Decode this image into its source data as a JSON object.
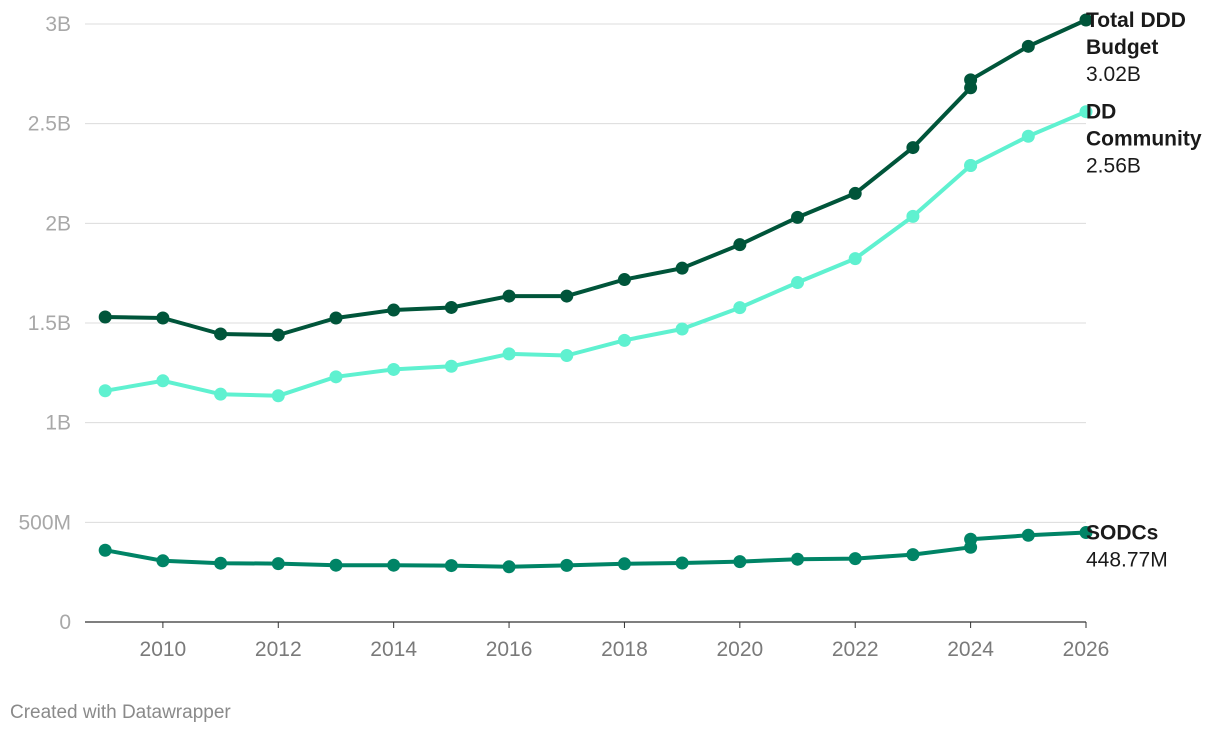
{
  "chart_data": {
    "type": "line",
    "title": "",
    "xlabel": "",
    "ylabel": "",
    "x": [
      2009,
      2010,
      2011,
      2012,
      2013,
      2014,
      2015,
      2016,
      2017,
      2018,
      2019,
      2020,
      2021,
      2022,
      2023,
      2024,
      2024,
      2025,
      2026
    ],
    "xlim": [
      2008.65,
      2026
    ],
    "ylim": [
      0,
      3000000000
    ],
    "x_ticks": [
      2010,
      2012,
      2014,
      2016,
      2018,
      2020,
      2022,
      2024,
      2026
    ],
    "y_ticks": [
      {
        "value": 0,
        "label": "0"
      },
      {
        "value": 500000000,
        "label": "500M"
      },
      {
        "value": 1000000000,
        "label": "1B"
      },
      {
        "value": 1500000000,
        "label": "1.5B"
      },
      {
        "value": 2000000000,
        "label": "2B"
      },
      {
        "value": 2500000000,
        "label": "2.5B"
      },
      {
        "value": 3000000000,
        "label": "3B"
      }
    ],
    "grid": true,
    "legend": "direct labels at line ends (right)",
    "series": [
      {
        "name": "Total DDD Budget",
        "label_lines": [
          "Total DDD",
          "Budget"
        ],
        "end_label": "3.02B",
        "color": "#00553a",
        "values": [
          1530000000,
          1525000000,
          1445000000,
          1440000000,
          1525000000,
          1565000000,
          1578000000,
          1635000000,
          1635000000,
          1718000000,
          1775000000,
          1893000000,
          2030000000,
          2150000000,
          2380000000,
          2680000000,
          2720000000,
          2888000000,
          3020000000
        ]
      },
      {
        "name": "DD Community",
        "label_lines": [
          "DD",
          "Community"
        ],
        "end_label": "2.56B",
        "color": "#5ff1d0",
        "values": [
          1160000000,
          1210000000,
          1143000000,
          1135000000,
          1230000000,
          1267000000,
          1283000000,
          1345000000,
          1337000000,
          1413000000,
          1470000000,
          1577000000,
          1703000000,
          1823000000,
          2035000000,
          2290000000,
          2290000000,
          2437000000,
          2560000000
        ]
      },
      {
        "name": "SODCs",
        "label_lines": [
          "SODCs"
        ],
        "end_label": "448.77M",
        "color": "#008466",
        "values": [
          360000000,
          307000000,
          295000000,
          293000000,
          285000000,
          285000000,
          283000000,
          277000000,
          284000000,
          292000000,
          296000000,
          303000000,
          315000000,
          318000000,
          338000000,
          375000000,
          415000000,
          435000000,
          448770000
        ]
      }
    ]
  },
  "credit": "Created with Datawrapper"
}
